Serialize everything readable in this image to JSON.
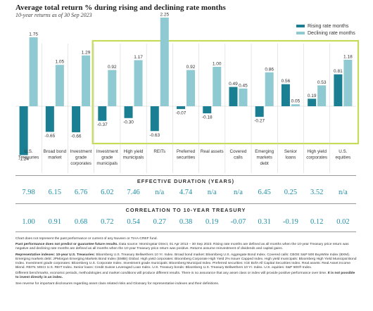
{
  "chart_data": {
    "type": "bar",
    "title": "Average total return % during rising and declining rate months",
    "subtitle": "10-year returns as of 30 Sep 2023",
    "categories": [
      "U.S. Treasuries",
      "Broad bond market",
      "Investment grade corporates",
      "Investment grade municipals",
      "High yield municipals",
      "REITs",
      "Preferred securities",
      "Real assets",
      "Covered calls",
      "Emerging markets debt",
      "Senior loans",
      "High yield corporates",
      "U.S. equities"
    ],
    "series": [
      {
        "name": "Rising rate months",
        "color": "#1a7f93",
        "values": [
          -1.24,
          -0.65,
          -0.66,
          -0.37,
          -0.3,
          -0.63,
          -0.07,
          -0.18,
          0.49,
          -0.27,
          0.56,
          0.19,
          0.81
        ]
      },
      {
        "name": "Declining rate months",
        "color": "#8fc9d1",
        "values": [
          1.75,
          1.05,
          1.29,
          0.92,
          1.17,
          2.25,
          0.92,
          1.0,
          0.45,
          0.86,
          0.05,
          0.53,
          1.18
        ]
      }
    ],
    "ylim": [
      -1.4,
      2.4
    ],
    "highlight_color": "#c5dc5a",
    "legend": "top-right"
  },
  "duration": {
    "heading": "EFFECTIVE DURATION (YEARS)",
    "values": [
      "7.98",
      "6.15",
      "6.76",
      "6.02",
      "7.46",
      "n/a",
      "4.74",
      "n/a",
      "n/a",
      "6.45",
      "0.25",
      "3.52",
      "n/a"
    ]
  },
  "correlation": {
    "heading": "CORRELATION TO 10-YEAR TREASURY",
    "values": [
      "1.00",
      "0.91",
      "0.68",
      "0.72",
      "0.54",
      "0.27",
      "0.38",
      "0.19",
      "-0.07",
      "0.31",
      "-0.19",
      "0.12",
      "0.02"
    ]
  },
  "footer": {
    "line1": "Chart does not represent the past performance or current of any Nuveen or TIAA-CREF fund.",
    "p2_bold": "Past performance does not predict or guarantee future results.",
    "p2_text": " Data source: Morningstar Direct, 01 Apr 2013 – 30 Sep 2023. Rising rate months are defined as all months when the 10-year Treasury price return was negative and declining rate months are defined as all months when the 10-year Treasury price return was positive. Returns assume reinvestment of dividends and capital gains.",
    "p3_bold": "Representative indexes: 10-year U.S. Treasuries:",
    "p3_text": " Bloomberg U.S. Treasury Bellwethers 10 Yr. Index. Broad bond market: Bloomberg U.S. Aggregate Bond Index. Covered calls: CBOE S&P 500 BuyWrite Index (BXM). Emerging markets debt: JPMorgan Emerging Markets Bond Index (EMBI) Global. High yield corporates: Bloomberg Corporate High Yield 2% Issuer Capped Index. High yield municipals: Bloomberg High Yield Municipal Bond Index. Investment grade corporates: Bloomberg U.S. Corporate Index. Investment grade municipals: Bloomberg Municipal Index. Preferred securities: ICE BofA All Capital Securities Index. Real assets: Real Asset Income Blend. REITs: MSCI U.S. REIT Index. Senior loans: Credit Suisse Leveraged Loan Index. U.S. Treasury bonds: Bloomberg U.S. Treasury Bellwethers 10 Yr. Index. U.S. equities: S&P 500® Index.",
    "p4_text": "Different benchmarks, economic periods, methodologies and market conditions will produce different results. There is no assurance that any asset class or index will provide positive performance over time.",
    "p4_bold": " It is not possible to invest directly in an index.",
    "p5_text": "See reverse for important disclosures regarding asset class related risks and Glossary for representative indexes and their definitions."
  }
}
